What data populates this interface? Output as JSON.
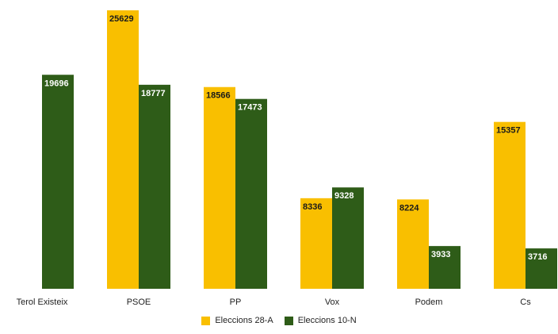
{
  "chart_data": {
    "type": "bar",
    "title": "",
    "xlabel": "",
    "ylabel": "",
    "ylim": [
      0,
      25629
    ],
    "grid": false,
    "legend_position": "bottom",
    "categories": [
      "Terol Existeix",
      "PSOE",
      "PP",
      "Vox",
      "Podem",
      "Cs"
    ],
    "series": [
      {
        "name": "Eleccions 28-A",
        "color": "#F9BF00",
        "label_color": "#1a1a1a",
        "values": [
          null,
          25629,
          18566,
          8336,
          8224,
          15357
        ],
        "labels": [
          "",
          "25629",
          "18566",
          "8336",
          "8224",
          "15357"
        ]
      },
      {
        "name": "Eleccions 10-N",
        "color": "#2E5C18",
        "label_color": "#ffffff",
        "values": [
          19696,
          18777,
          17473,
          9328,
          3933,
          3716
        ],
        "labels": [
          "19696",
          "18777",
          "17473",
          "9328",
          "3933",
          "3716"
        ]
      }
    ]
  }
}
